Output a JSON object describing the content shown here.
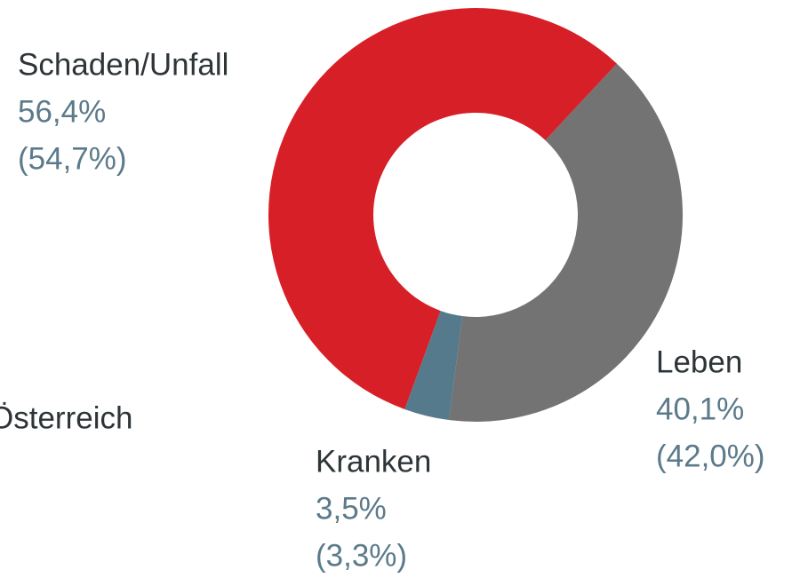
{
  "chart_data": {
    "type": "donut",
    "categories": [
      "Schaden/Unfall",
      "Leben",
      "Kranken"
    ],
    "values": [
      56.4,
      40.1,
      3.5
    ],
    "value_labels": [
      "56,4%",
      "40,1%",
      "3,5%"
    ],
    "prior_values": [
      54.7,
      42.0,
      3.3
    ],
    "prior_labels": [
      "(54,7%)",
      "(42,0%)",
      "(3,3%)"
    ],
    "colors": [
      "#d71f27",
      "#737373",
      "#557a8c"
    ],
    "side_label": "Österreich"
  }
}
